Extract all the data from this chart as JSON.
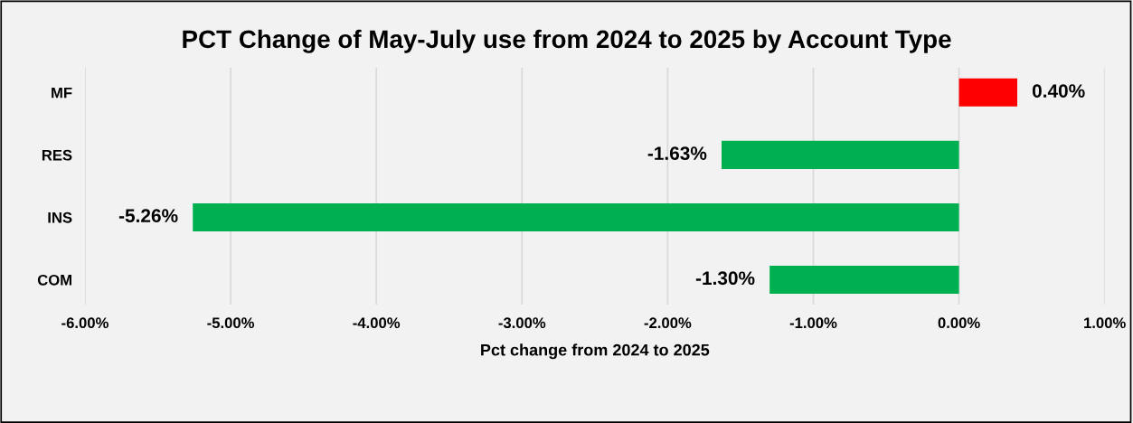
{
  "chart_data": {
    "type": "bar",
    "orientation": "horizontal",
    "title": "PCT Change of May-July use from 2024 to 2025 by Account Type",
    "xlabel": "Pct change from 2024 to 2025",
    "categories": [
      "MF",
      "RES",
      "INS",
      "COM"
    ],
    "values": [
      0.4,
      -1.63,
      -5.26,
      -1.3
    ],
    "colors": [
      "#ff0000",
      "#00b050",
      "#00b050",
      "#00b050"
    ],
    "value_labels": [
      "0.40%",
      "-1.63%",
      "-5.26%",
      "-1.30%"
    ],
    "xlim": [
      -6,
      1
    ],
    "xticks": [
      {
        "value": -6,
        "label": "-6.00%"
      },
      {
        "value": -5,
        "label": "-5.00%"
      },
      {
        "value": -4,
        "label": "-4.00%"
      },
      {
        "value": -3,
        "label": "-3.00%"
      },
      {
        "value": -2,
        "label": "-2.00%"
      },
      {
        "value": -1,
        "label": "-1.00%"
      },
      {
        "value": 0,
        "label": "0.00%"
      },
      {
        "value": 1,
        "label": "1.00%"
      }
    ],
    "grid": "x",
    "legend": false
  }
}
